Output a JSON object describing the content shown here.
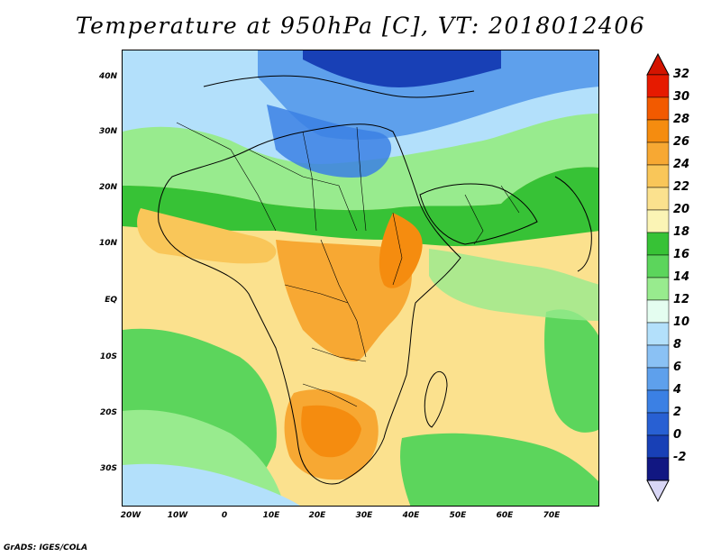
{
  "title": "Temperature at 950hPa [C], VT: 2018012406",
  "credit": "GrADS: IGES/COLA",
  "axes": {
    "lat_labels": [
      "40N",
      "30N",
      "20N",
      "10N",
      "EQ",
      "10S",
      "20S",
      "30S"
    ],
    "lon_labels": [
      "20W",
      "10W",
      "0",
      "10E",
      "20E",
      "30E",
      "40E",
      "50E",
      "60E",
      "70E"
    ]
  },
  "colorbar": {
    "labels": [
      "32",
      "30",
      "28",
      "26",
      "24",
      "22",
      "20",
      "18",
      "16",
      "14",
      "12",
      "10",
      "8",
      "6",
      "4",
      "2",
      "0",
      "-2"
    ],
    "colors_top_to_bottom": [
      "#e61a00",
      "#f25a00",
      "#f58c0f",
      "#f7a833",
      "#f9c659",
      "#fbe18e",
      "#fbf4b5",
      "#37c236",
      "#5cd55c",
      "#98eb8e",
      "#e4fdf0",
      "#b3e0fb",
      "#8ac1f4",
      "#5ea0ec",
      "#3b80e4",
      "#2860d3",
      "#1840b6",
      "#111782"
    ],
    "arrow_top_color": "#d41400",
    "arrow_bottom_color": "#d8d6f5"
  },
  "palette": {
    "ocean_warm": "#fbe18e",
    "ocean_mid": "#5cd55c",
    "land_hot": "#f58c0f",
    "land_cold": "#3b80e4",
    "coast_line": "#000000"
  }
}
